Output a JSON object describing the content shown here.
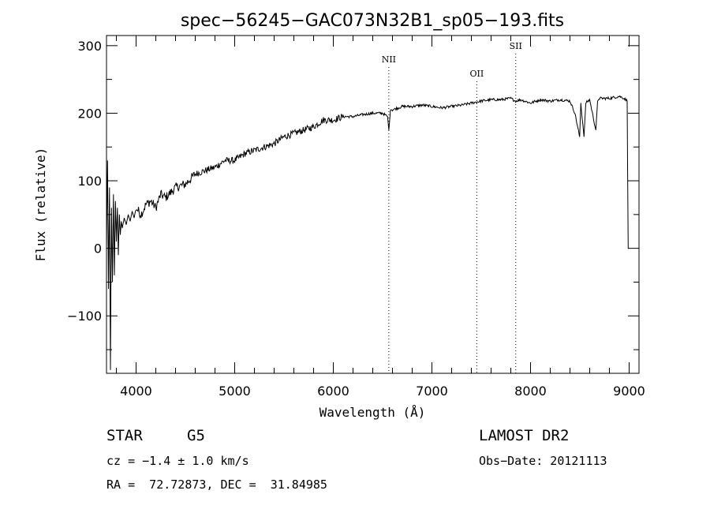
{
  "chart_data": {
    "type": "line",
    "title": "spec−56245−GAC073N32B1_sp05−193.fits",
    "xlabel": "Wavelength (Å)",
    "ylabel": "Flux (relative)",
    "xlim": [
      3700,
      9100
    ],
    "ylim": [
      -185,
      315
    ],
    "xticks": [
      4000,
      5000,
      6000,
      7000,
      8000,
      9000
    ],
    "xtick_labels": [
      "4000",
      "5000",
      "6000",
      "7000",
      "8000",
      "9000"
    ],
    "yticks": [
      -100,
      0,
      100,
      200,
      300
    ],
    "ytick_labels": [
      "−100",
      "0",
      "100",
      "200",
      "300"
    ],
    "grid": false,
    "series": [
      {
        "x": [
          3700,
          3710,
          3720,
          3730,
          3740,
          3750,
          3760,
          3770,
          3780,
          3790,
          3800,
          3810,
          3820,
          3830,
          3840,
          3850,
          3860,
          3880,
          3900,
          3920,
          3940,
          3960,
          3980,
          4000,
          4050,
          4100,
          4150,
          4200,
          4250,
          4300,
          4400,
          4500,
          4600,
          4700,
          4800,
          4900,
          5000,
          5100,
          5200,
          5300,
          5400,
          5500,
          5600,
          5700,
          5800,
          5900,
          6000,
          6100,
          6200,
          6300,
          6400,
          6500,
          6550,
          6563,
          6580,
          6600,
          6700,
          6800,
          6900,
          7000,
          7100,
          7200,
          7300,
          7400,
          7500,
          7600,
          7700,
          7800,
          7850,
          7900,
          8000,
          8100,
          8200,
          8300,
          8400,
          8450,
          8498,
          8510,
          8542,
          8560,
          8600,
          8662,
          8680,
          8700,
          8800,
          8900,
          8950,
          8980,
          8990,
          9000
        ],
        "y": [
          0,
          130,
          -60,
          90,
          -180,
          60,
          -50,
          80,
          -40,
          70,
          10,
          60,
          -10,
          50,
          20,
          40,
          30,
          45,
          35,
          50,
          40,
          55,
          45,
          60,
          50,
          65,
          70,
          60,
          80,
          75,
          90,
          95,
          110,
          115,
          120,
          130,
          130,
          140,
          145,
          150,
          155,
          165,
          170,
          175,
          180,
          190,
          190,
          195,
          195,
          198,
          200,
          200,
          195,
          175,
          205,
          205,
          210,
          210,
          212,
          210,
          208,
          210,
          212,
          215,
          218,
          220,
          220,
          222,
          218,
          220,
          215,
          220,
          218,
          220,
          218,
          200,
          165,
          215,
          165,
          215,
          220,
          175,
          218,
          222,
          222,
          225,
          222,
          218,
          0,
          0
        ]
      }
    ],
    "annotations": [
      {
        "label": "NII",
        "x": 6563
      },
      {
        "label": "OII",
        "x": 7455
      },
      {
        "label": "SII",
        "x": 7850
      }
    ]
  },
  "info": {
    "object_class": "STAR",
    "subclass": "G5",
    "survey": "LAMOST DR2",
    "redshift": "cz = −1.4 ± 1.0 km/s",
    "obs_date": "Obs−Date: 20121113",
    "coords": "RA =  72.72873, DEC =  31.84985"
  }
}
